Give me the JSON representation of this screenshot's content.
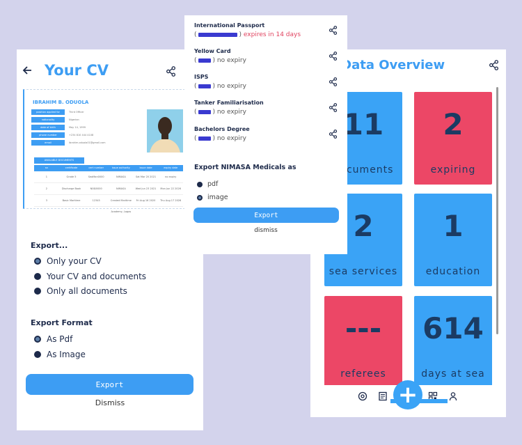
{
  "cv_screen": {
    "title": "Your CV",
    "preview": {
      "name": "IBRAHIM B. ODUOLA",
      "fields": [
        {
          "label": "position applied for",
          "value": "Third Officer"
        },
        {
          "label": "nationality",
          "value": "Nigerian"
        },
        {
          "label": "date of birth",
          "value": "May 14, 1999"
        },
        {
          "label": "phone number",
          "value": "+234 810 444 4108"
        },
        {
          "label": "email",
          "value": "ibrahim.oduola01@gmail.com"
        }
      ],
      "docs_title": "AVAILABLE DOCUMENTS",
      "table_headers": [
        "sn",
        "certificate",
        "cert number",
        "issue authority",
        "issue date",
        "expiry date"
      ],
      "table_rows": [
        [
          "1",
          "Grade 5",
          "SeaMan0000",
          "NIMASA",
          "Sat Mar 20 2021",
          "no expiry"
        ],
        [
          "2",
          "Discharge Book",
          "N08/0000",
          "NIMASA",
          "Wed Jun 23 2021",
          "Mon Jun 22 2026"
        ],
        [
          "3",
          "Basic Maritime",
          "12345",
          "Crested Maritime Academy, Lagos",
          "Fri Aug 16 2020",
          "Thu Aug 17 2026"
        ]
      ]
    },
    "export_title": "Export...",
    "export_options": [
      "Only your CV",
      "Your CV and documents",
      "Only all documents"
    ],
    "format_title": "Export Format",
    "format_options": [
      "As Pdf",
      "As Image"
    ],
    "export_button": "Export",
    "dismiss_button": "Dismiss"
  },
  "expiry_screen": {
    "documents": [
      {
        "title": "International Passport",
        "prefix": "(",
        "suffix": ")",
        "status": "expires in 14 days",
        "expiring": true
      },
      {
        "title": "Yellow Card",
        "prefix": "(",
        "suffix": ")",
        "status": "no expiry",
        "expiring": false
      },
      {
        "title": "ISPS",
        "prefix": "(",
        "suffix": ")",
        "status": "no expiry",
        "expiring": false
      },
      {
        "title": "Tanker Familiarisation",
        "prefix": "(",
        "suffix": ")",
        "status": "no expiry",
        "expiring": false
      },
      {
        "title": "Bachelors Degree",
        "prefix": "(",
        "suffix": ")",
        "status": "no expiry",
        "expiring": false
      }
    ],
    "export_title": "Export NIMASA Medicals as",
    "options": [
      "pdf",
      "image"
    ],
    "export_button": "Export",
    "dismiss_button": "dismiss"
  },
  "overview_screen": {
    "title": "r Data Overview",
    "tiles": [
      {
        "value": "11",
        "label": "documents",
        "color": "#3aa3f6"
      },
      {
        "value": "2",
        "label": "expiring",
        "color": "#ec4766"
      },
      {
        "value": "2",
        "label": "sea services",
        "color": "#3aa3f6"
      },
      {
        "value": "1",
        "label": "education",
        "color": "#3aa3f6"
      },
      {
        "value": "---",
        "label": "referees",
        "color": "#ec4766"
      },
      {
        "value": "614",
        "label": "days at sea",
        "color": "#3aa3f6"
      }
    ],
    "fab_label": "+",
    "nav_icons": [
      "settings-icon",
      "news-icon",
      "qr-code-icon",
      "profile-icon"
    ]
  },
  "colors": {
    "accent": "#3d9df3",
    "danger": "#ec4766",
    "ink": "#1d2a4a",
    "background": "#d3d3ec"
  }
}
